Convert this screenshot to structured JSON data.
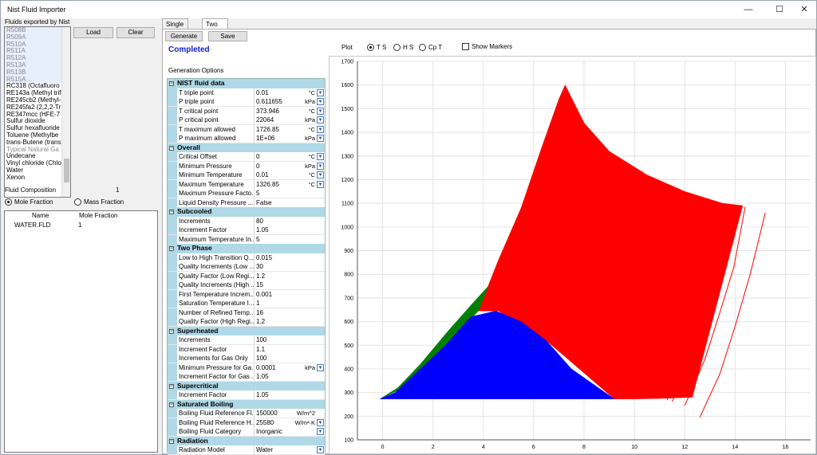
{
  "window": {
    "title": "Nist Fluid Importer",
    "minimize": "—",
    "maximize": "☐",
    "close": "✕"
  },
  "left": {
    "fluids_label": "Fluids exported by Nist",
    "fluids": [
      "R508B",
      "R509A",
      "R510A",
      "R511A",
      "R512A",
      "R513A",
      "R513B",
      "R515A",
      "RC318  (Octafluoro",
      "RE143a  (Methyl trif",
      "RE245cb2  (Methyl-",
      "RE245fa2  (2,2,2-Tr",
      "RE347mcc  (HFE-7",
      "Sulfur dioxide",
      "Sulfur hexafluoride",
      "Toluene (Methylbe",
      "trans-Butene (trans",
      "Typical Natural Ga",
      "Undecane",
      "Vinyl chloride (Chlo",
      "Water",
      "Xenon"
    ],
    "fluid_grey": [
      true,
      true,
      true,
      true,
      true,
      true,
      true,
      true,
      false,
      false,
      false,
      false,
      false,
      false,
      false,
      false,
      false,
      true,
      false,
      false,
      false,
      false
    ],
    "load_button": "Load",
    "clear_button": "Clear",
    "composition_label": "Fluid Composition",
    "composition_count": "1",
    "mole_fraction": "Mole Fraction",
    "mass_fraction": "Mass Fraction",
    "grid_headers": {
      "name": "Name",
      "mole": "Mole Fraction"
    },
    "grid_rows": [
      {
        "name": "WATER.FLD",
        "value": "1"
      }
    ]
  },
  "tabs": {
    "single": "Single Phase",
    "two": "Two Phase"
  },
  "toolbar": {
    "generate": "Generate",
    "save": "Save"
  },
  "status": "Completed",
  "generation_options": "Generation Options",
  "plot": {
    "label": "Plot",
    "ts": "T S",
    "hs": "H S",
    "cpt": "Cp T",
    "show_markers": "Show Markers",
    "selected": "T S"
  },
  "props": [
    {
      "cat": "NIST fluid data"
    },
    {
      "name": "T triple point",
      "value": "0.01",
      "unit": "°C",
      "dd": true
    },
    {
      "name": "P triple point",
      "value": "0.611655",
      "unit": "kPa",
      "dd": true
    },
    {
      "name": "T critical point",
      "value": "373.946",
      "unit": "°C",
      "dd": true
    },
    {
      "name": "P critical point",
      "value": "22064",
      "unit": "kPa",
      "dd": true
    },
    {
      "name": "T maximum allowed",
      "value": "1726.85",
      "unit": "°C",
      "dd": true
    },
    {
      "name": "P maximum allowed",
      "value": "1E+06",
      "unit": "kPa",
      "dd": true
    },
    {
      "cat": "Overall"
    },
    {
      "name": "Critical Offset",
      "value": "0",
      "unit": "°C",
      "dd": true
    },
    {
      "name": "Minimum Pressure",
      "value": "0",
      "unit": "kPa",
      "dd": true
    },
    {
      "name": "Minimum Temperature",
      "value": "0.01",
      "unit": "°C",
      "dd": true
    },
    {
      "name": "Maximum Temperature",
      "value": "1326.85",
      "unit": "°C",
      "dd": true
    },
    {
      "name": "Maximum Pressure Facto...",
      "value": "5",
      "unit": "",
      "dd": false
    },
    {
      "name": "Liquid Density Pressure ...",
      "value": "False",
      "unit": "",
      "dd": false
    },
    {
      "cat": "Subcooled"
    },
    {
      "name": "Increments",
      "value": "80",
      "unit": "",
      "dd": false
    },
    {
      "name": "Increment Factor",
      "value": "1.05",
      "unit": "",
      "dd": false
    },
    {
      "name": "Maximum Temperature In...",
      "value": "5",
      "unit": "",
      "dd": false
    },
    {
      "cat": "Two Phase"
    },
    {
      "name": "Low to High Transition Q...",
      "value": "0.015",
      "unit": "",
      "dd": false
    },
    {
      "name": "Quality Increments (Low ...",
      "value": "30",
      "unit": "",
      "dd": false
    },
    {
      "name": "Quality Factor (Low Regi...",
      "value": "1.2",
      "unit": "",
      "dd": false
    },
    {
      "name": "Quality Increments (High ...",
      "value": "15",
      "unit": "",
      "dd": false
    },
    {
      "name": "First Temperature Increm...",
      "value": "0.001",
      "unit": "",
      "dd": false
    },
    {
      "name": "Saturation Temperature I...",
      "value": "1",
      "unit": "",
      "dd": false
    },
    {
      "name": "Number of Refined Temp...",
      "value": "16",
      "unit": "",
      "dd": false
    },
    {
      "name": "Quality Factor (High Regi...",
      "value": "1.2",
      "unit": "",
      "dd": false
    },
    {
      "cat": "Superheated"
    },
    {
      "name": "Increments",
      "value": "100",
      "unit": "",
      "dd": false
    },
    {
      "name": "Increment Factor",
      "value": "1.1",
      "unit": "",
      "dd": false
    },
    {
      "name": "Increments for Gas Only",
      "value": "100",
      "unit": "",
      "dd": false
    },
    {
      "name": "Minimum Pressure for Ga...",
      "value": "0.0001",
      "unit": "kPa",
      "dd": true
    },
    {
      "name": "Increment Factor for Gas ...",
      "value": "1.05",
      "unit": "",
      "dd": false
    },
    {
      "cat": "Supercritical"
    },
    {
      "name": "Increment Factor",
      "value": "1.05",
      "unit": "",
      "dd": false
    },
    {
      "cat": "Saturated Boiling"
    },
    {
      "name": "Boiling Fluid Reference Fl...",
      "value": "150000",
      "unit": "W/m^2",
      "dd": false
    },
    {
      "name": "Boiling Fluid Reference H...",
      "value": "25580",
      "unit": "W/m²·K",
      "dd": true
    },
    {
      "name": "Boiling Fluid Category",
      "value": "Inorganic",
      "unit": "",
      "dd": true
    },
    {
      "cat": "Radiation"
    },
    {
      "name": "Radiation Model",
      "value": "Water",
      "unit": "",
      "dd": true
    }
  ],
  "chart_data": {
    "type": "area",
    "x_ticks": [
      "0",
      "2",
      "4",
      "6",
      "8",
      "10",
      "12",
      "14",
      "16"
    ],
    "y_ticks": [
      "100",
      "200",
      "300",
      "400",
      "500",
      "600",
      "700",
      "800",
      "900",
      "1000",
      "1100",
      "1200",
      "1300",
      "1400",
      "1500",
      "1600",
      "1700"
    ],
    "xlim": [
      -1,
      17
    ],
    "ylim": [
      100,
      1700
    ],
    "grid": true,
    "colors": {
      "subcooled": "#0000ff",
      "twophase": "#008000",
      "superheated": "#ff0000"
    },
    "series": [
      {
        "color": "#0000ff",
        "x": [
          -0.1,
          0.5,
          1.5,
          2.5,
          3.5,
          4.5,
          5.5,
          6.5,
          7.5,
          9.2
        ],
        "y": [
          273,
          300,
          400,
          500,
          620,
          645,
          600,
          520,
          400,
          273
        ]
      },
      {
        "color": "#008000",
        "x": [
          -0.1,
          1.0,
          2.5,
          3.8,
          4.2,
          3.6,
          2.6,
          1.5,
          0.6
        ],
        "y": [
          273,
          330,
          490,
          645,
          750,
          680,
          560,
          420,
          320
        ]
      },
      {
        "color": "#ff0000",
        "x": [
          3.8,
          4.6,
          5.5,
          6.3,
          7.0,
          7.25,
          8.0,
          9.0,
          10.5,
          12.0,
          13.5,
          14.3,
          12.3,
          11.0,
          10.0,
          9.3,
          9.2,
          6.5,
          4.6
        ],
        "y": [
          645,
          860,
          1080,
          1330,
          1540,
          1600,
          1440,
          1320,
          1220,
          1150,
          1100,
          1090,
          280,
          275,
          273,
          273,
          273,
          520,
          645
        ]
      }
    ],
    "extra_lines": [
      {
        "color": "#ff0000",
        "x": [
          11.0,
          11.8,
          12.4,
          13.1,
          13.7
        ],
        "y": [
          275,
          500,
          700,
          900,
          1075
        ]
      },
      {
        "color": "#ff0000",
        "x": [
          11.3,
          12.1,
          12.7,
          13.3,
          13.9
        ],
        "y": [
          268,
          480,
          680,
          880,
          1075
        ]
      },
      {
        "color": "#ff0000",
        "x": [
          11.5,
          12.3,
          12.9,
          13.5,
          14.1
        ],
        "y": [
          262,
          460,
          660,
          860,
          1080
        ]
      },
      {
        "color": "#ff0000",
        "x": [
          12.0,
          12.8,
          13.4,
          13.95,
          14.4
        ],
        "y": [
          245,
          440,
          640,
          830,
          1085
        ]
      },
      {
        "color": "#ff0000",
        "x": [
          12.6,
          13.4,
          14.0,
          14.6,
          15.2
        ],
        "y": [
          195,
          380,
          580,
          800,
          1060
        ]
      }
    ]
  }
}
